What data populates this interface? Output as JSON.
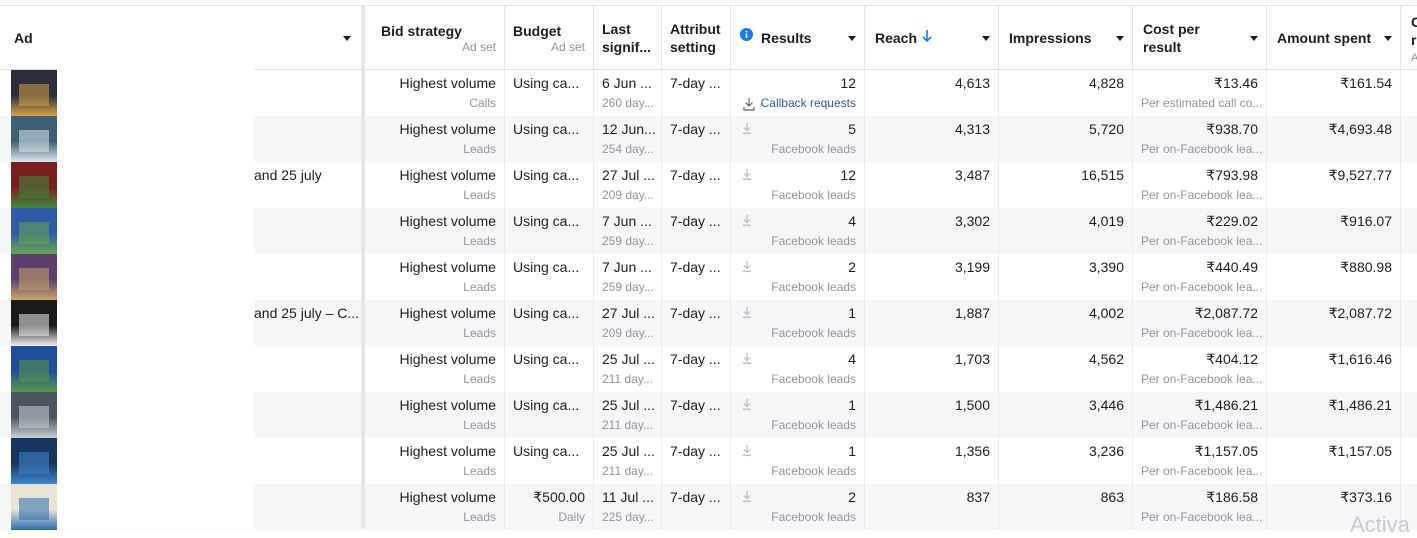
{
  "columns": {
    "ad": {
      "title": "Ad"
    },
    "bid_strategy": {
      "title": "Bid strategy",
      "sub": "Ad set"
    },
    "budget": {
      "title": "Budget",
      "sub": "Ad set"
    },
    "last_significant": {
      "title1": "Last",
      "title2": "signif..."
    },
    "attribution": {
      "title1": "Attribut",
      "title2": "setting"
    },
    "results": {
      "title": "Results"
    },
    "reach": {
      "title": "Reach"
    },
    "impressions": {
      "title": "Impressions"
    },
    "cost_per_result": {
      "title1": "Cost per",
      "title2": "result"
    },
    "amount_spent": {
      "title": "Amount spent"
    },
    "next": {
      "title1": "C",
      "title2": "r",
      "sub": "A"
    }
  },
  "icons": {
    "info": "info-icon",
    "sort": "arrow-down-icon",
    "download": "download-icon",
    "phone": "callback-icon",
    "dropdown": "chevron-down-icon"
  },
  "colors": {
    "accent": "#1877f2",
    "link": "#385898",
    "alt_row": "#f5f6f7"
  },
  "rows": [
    {
      "ad": "",
      "bid": "Highest volume",
      "bid_sub": "Calls",
      "budget": "Using ca...",
      "budget_sub": "",
      "last": "6 Jun ...",
      "last_sub": "260 day...",
      "attr": "7-day ...",
      "results": "12",
      "results_sub": "Callback requests",
      "reach": "4,613",
      "impr": "4,828",
      "cpr": "₹13.46",
      "cpr_sub": "Per estimated call co...",
      "spent": "₹161.54"
    },
    {
      "ad": "",
      "bid": "Highest volume",
      "bid_sub": "Leads",
      "budget": "Using ca...",
      "budget_sub": "",
      "last": "12 Jun...",
      "last_sub": "254 day...",
      "attr": "7-day ...",
      "results": "5",
      "results_sub": "Facebook leads",
      "reach": "4,313",
      "impr": "5,720",
      "cpr": "₹938.70",
      "cpr_sub": "Per on-Facebook lea...",
      "spent": "₹4,693.48"
    },
    {
      "ad": "and 25 july",
      "bid": "Highest volume",
      "bid_sub": "Leads",
      "budget": "Using ca...",
      "budget_sub": "",
      "last": "27 Jul ...",
      "last_sub": "209 day...",
      "attr": "7-day ...",
      "results": "12",
      "results_sub": "Facebook leads",
      "reach": "3,487",
      "impr": "16,515",
      "cpr": "₹793.98",
      "cpr_sub": "Per on-Facebook lea...",
      "spent": "₹9,527.77"
    },
    {
      "ad": "",
      "bid": "Highest volume",
      "bid_sub": "Leads",
      "budget": "Using ca...",
      "budget_sub": "",
      "last": "7 Jun ...",
      "last_sub": "259 day...",
      "attr": "7-day ...",
      "results": "4",
      "results_sub": "Facebook leads",
      "reach": "3,302",
      "impr": "4,019",
      "cpr": "₹229.02",
      "cpr_sub": "Per on-Facebook lea...",
      "spent": "₹916.07"
    },
    {
      "ad": "",
      "bid": "Highest volume",
      "bid_sub": "Leads",
      "budget": "Using ca...",
      "budget_sub": "",
      "last": "7 Jun ...",
      "last_sub": "259 day...",
      "attr": "7-day ...",
      "results": "2",
      "results_sub": "Facebook leads",
      "reach": "3,199",
      "impr": "3,390",
      "cpr": "₹440.49",
      "cpr_sub": "Per on-Facebook lea...",
      "spent": "₹880.98"
    },
    {
      "ad": "and 25 july – C...",
      "bid": "Highest volume",
      "bid_sub": "Leads",
      "budget": "Using ca...",
      "budget_sub": "",
      "last": "27 Jul ...",
      "last_sub": "209 day...",
      "attr": "7-day ...",
      "results": "1",
      "results_sub": "Facebook leads",
      "reach": "1,887",
      "impr": "4,002",
      "cpr": "₹2,087.72",
      "cpr_sub": "Per on-Facebook lea...",
      "spent": "₹2,087.72"
    },
    {
      "ad": "",
      "bid": "Highest volume",
      "bid_sub": "Leads",
      "budget": "Using ca...",
      "budget_sub": "",
      "last": "25 Jul ...",
      "last_sub": "211 day...",
      "attr": "7-day ...",
      "results": "4",
      "results_sub": "Facebook leads",
      "reach": "1,703",
      "impr": "4,562",
      "cpr": "₹404.12",
      "cpr_sub": "Per on-Facebook lea...",
      "spent": "₹1,616.46"
    },
    {
      "ad": "",
      "bid": "Highest volume",
      "bid_sub": "Leads",
      "budget": "Using ca...",
      "budget_sub": "",
      "last": "25 Jul ...",
      "last_sub": "211 day...",
      "attr": "7-day ...",
      "results": "1",
      "results_sub": "Facebook leads",
      "reach": "1,500",
      "impr": "3,446",
      "cpr": "₹1,486.21",
      "cpr_sub": "Per on-Facebook lea...",
      "spent": "₹1,486.21"
    },
    {
      "ad": "",
      "bid": "Highest volume",
      "bid_sub": "Leads",
      "budget": "Using ca...",
      "budget_sub": "",
      "last": "25 Jul ...",
      "last_sub": "211 day...",
      "attr": "7-day ...",
      "results": "1",
      "results_sub": "Facebook leads",
      "reach": "1,356",
      "impr": "3,236",
      "cpr": "₹1,157.05",
      "cpr_sub": "Per on-Facebook lea...",
      "spent": "₹1,157.05"
    },
    {
      "ad": "",
      "bid": "Highest volume",
      "bid_sub": "Leads",
      "budget": "₹500.00",
      "budget_sub": "Daily",
      "last": "11 Jul ...",
      "last_sub": "225 day...",
      "attr": "7-day ...",
      "results": "2",
      "results_sub": "Facebook leads",
      "reach": "837",
      "impr": "863",
      "cpr": "₹186.58",
      "cpr_sub": "Per on-Facebook lea...",
      "spent": "₹373.16"
    }
  ],
  "thumbnails": [
    {
      "bg": "#2b2f3a",
      "fg": "#d8a24a"
    },
    {
      "bg": "#3f5f74",
      "fg": "#dfe8ef"
    },
    {
      "bg": "#7a1f1f",
      "fg": "#3d8a3d"
    },
    {
      "bg": "#2e5aa8",
      "fg": "#6aa84f"
    },
    {
      "bg": "#5b3f6e",
      "fg": "#c9a66b"
    },
    {
      "bg": "#1a1a1a",
      "fg": "#f2f2f2"
    },
    {
      "bg": "#1f4f9a",
      "fg": "#5a9a45"
    },
    {
      "bg": "#4a5560",
      "fg": "#c8d0d6"
    },
    {
      "bg": "#17355f",
      "fg": "#3f86d0"
    },
    {
      "bg": "#e9e4d8",
      "fg": "#2c6db0"
    }
  ],
  "watermark": "Activa"
}
